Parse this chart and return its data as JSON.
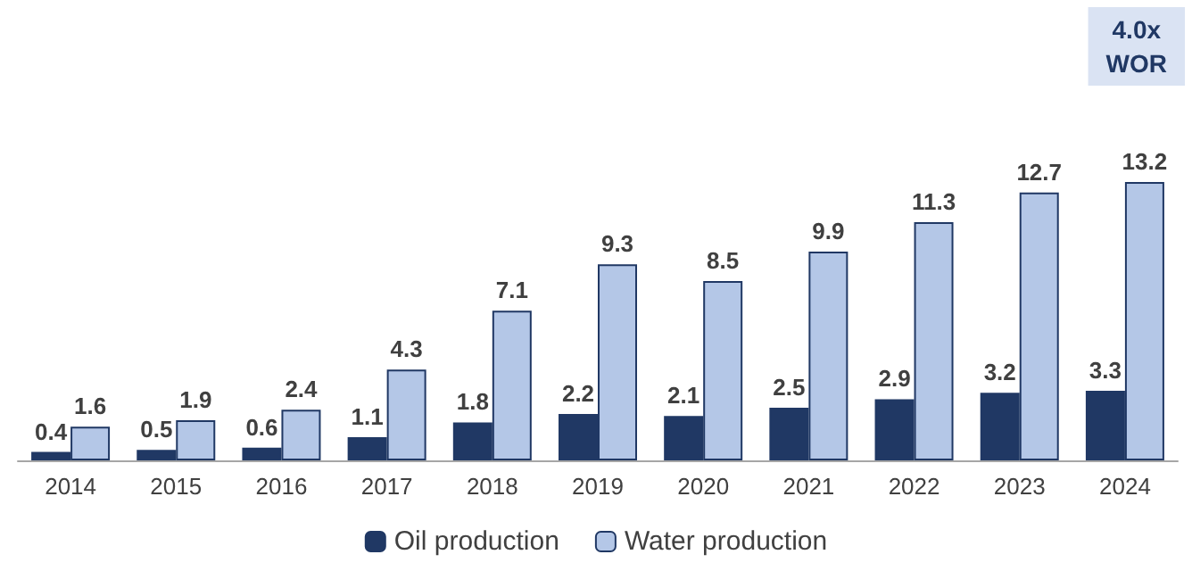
{
  "chart_data": {
    "type": "bar",
    "categories": [
      "2014",
      "2015",
      "2016",
      "2017",
      "2018",
      "2019",
      "2020",
      "2021",
      "2022",
      "2023",
      "2024"
    ],
    "series": [
      {
        "name": "Oil production",
        "color": "#203864",
        "values": [
          0.4,
          0.5,
          0.6,
          1.1,
          1.8,
          2.2,
          2.1,
          2.5,
          2.9,
          3.2,
          3.3
        ]
      },
      {
        "name": "Water production",
        "color": "#b4c7e7",
        "values": [
          1.6,
          1.9,
          2.4,
          4.3,
          7.1,
          9.3,
          8.5,
          9.9,
          11.3,
          12.7,
          13.2
        ]
      }
    ],
    "data_labels": true,
    "legend": "bottom",
    "annotations": [
      "4.0x WOR"
    ]
  }
}
